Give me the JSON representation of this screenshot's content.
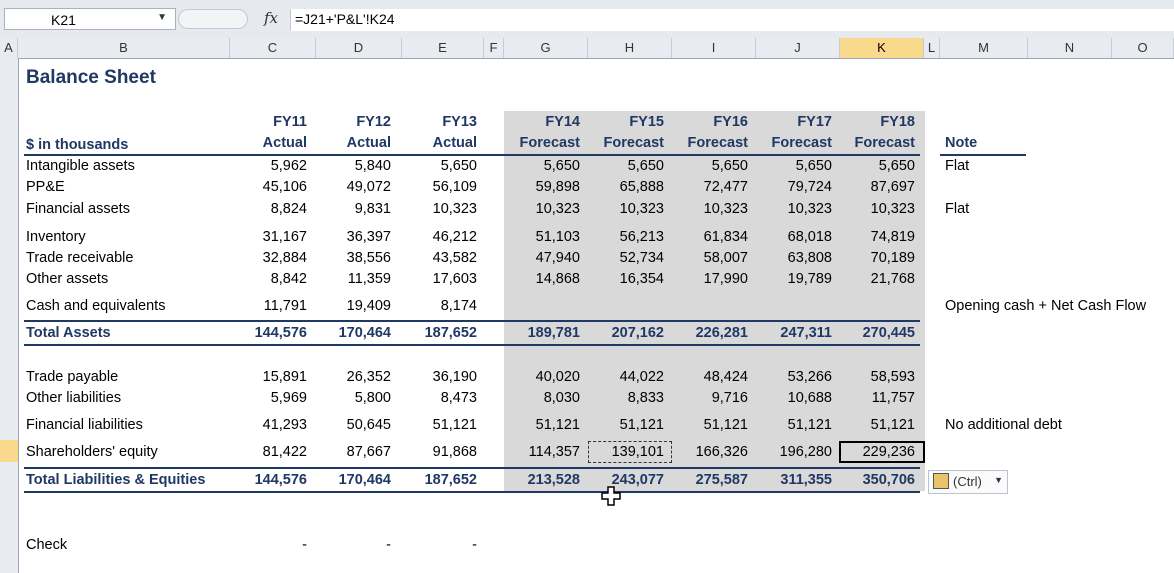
{
  "formula_bar": {
    "name_box": "K21",
    "fx_label": "fx",
    "formula": "=J21+'P&L'!K24"
  },
  "columns": [
    "A",
    "B",
    "C",
    "D",
    "E",
    "F",
    "G",
    "H",
    "I",
    "J",
    "K",
    "L",
    "M",
    "N",
    "O"
  ],
  "selected_column": "K",
  "sheet": {
    "title": "Balance Sheet",
    "units_label": "$ in thousands",
    "note_header": "Note",
    "years": [
      "FY11",
      "FY12",
      "FY13",
      "FY14",
      "FY15",
      "FY16",
      "FY17",
      "FY18"
    ],
    "kinds": [
      "Actual",
      "Actual",
      "Actual",
      "Forecast",
      "Forecast",
      "Forecast",
      "Forecast",
      "Forecast"
    ],
    "rows": [
      {
        "label": "Intangible assets",
        "values": [
          "5,962",
          "5,840",
          "5,650",
          "5,650",
          "5,650",
          "5,650",
          "5,650",
          "5,650"
        ],
        "note": "Flat"
      },
      {
        "label": "PP&E",
        "values": [
          "45,106",
          "49,072",
          "56,109",
          "59,898",
          "65,888",
          "72,477",
          "79,724",
          "87,697"
        ],
        "note": ""
      },
      {
        "label": "Financial assets",
        "values": [
          "8,824",
          "9,831",
          "10,323",
          "10,323",
          "10,323",
          "10,323",
          "10,323",
          "10,323"
        ],
        "note": "Flat"
      },
      {
        "label": "Inventory",
        "values": [
          "31,167",
          "36,397",
          "46,212",
          "51,103",
          "56,213",
          "61,834",
          "68,018",
          "74,819"
        ],
        "note": ""
      },
      {
        "label": "Trade receivable",
        "values": [
          "32,884",
          "38,556",
          "43,582",
          "47,940",
          "52,734",
          "58,007",
          "63,808",
          "70,189"
        ],
        "note": ""
      },
      {
        "label": "Other assets",
        "values": [
          "8,842",
          "11,359",
          "17,603",
          "14,868",
          "16,354",
          "17,990",
          "19,789",
          "21,768"
        ],
        "note": ""
      },
      {
        "label": "Cash and equivalents",
        "values": [
          "11,791",
          "19,409",
          "8,174",
          "",
          "",
          "",
          "",
          ""
        ],
        "note": "Opening cash + Net Cash Flow"
      },
      {
        "label": "Total Assets",
        "values": [
          "144,576",
          "170,464",
          "187,652",
          "189,781",
          "207,162",
          "226,281",
          "247,311",
          "270,445"
        ],
        "note": ""
      },
      {
        "label": "Trade payable",
        "values": [
          "15,891",
          "26,352",
          "36,190",
          "40,020",
          "44,022",
          "48,424",
          "53,266",
          "58,593"
        ],
        "note": ""
      },
      {
        "label": "Other liabilities",
        "values": [
          "5,969",
          "5,800",
          "8,473",
          "8,030",
          "8,833",
          "9,716",
          "10,688",
          "11,757"
        ],
        "note": ""
      },
      {
        "label": "Financial liabilities",
        "values": [
          "41,293",
          "50,645",
          "51,121",
          "51,121",
          "51,121",
          "51,121",
          "51,121",
          "51,121"
        ],
        "note": "No additional debt"
      },
      {
        "label": "Shareholders' equity",
        "values": [
          "81,422",
          "87,667",
          "91,868",
          "114,357",
          "139,101",
          "166,326",
          "196,280",
          "229,236"
        ],
        "note": ""
      },
      {
        "label": "Total Liabilities & Equities",
        "values": [
          "144,576",
          "170,464",
          "187,652",
          "213,528",
          "243,077",
          "275,587",
          "311,355",
          "350,706"
        ],
        "note": ""
      },
      {
        "label": "Check",
        "values": [
          "-",
          "-",
          "-",
          "",
          "",
          "",
          "",
          ""
        ],
        "note": ""
      }
    ]
  },
  "paste_options": {
    "label": "(Ctrl)"
  }
}
